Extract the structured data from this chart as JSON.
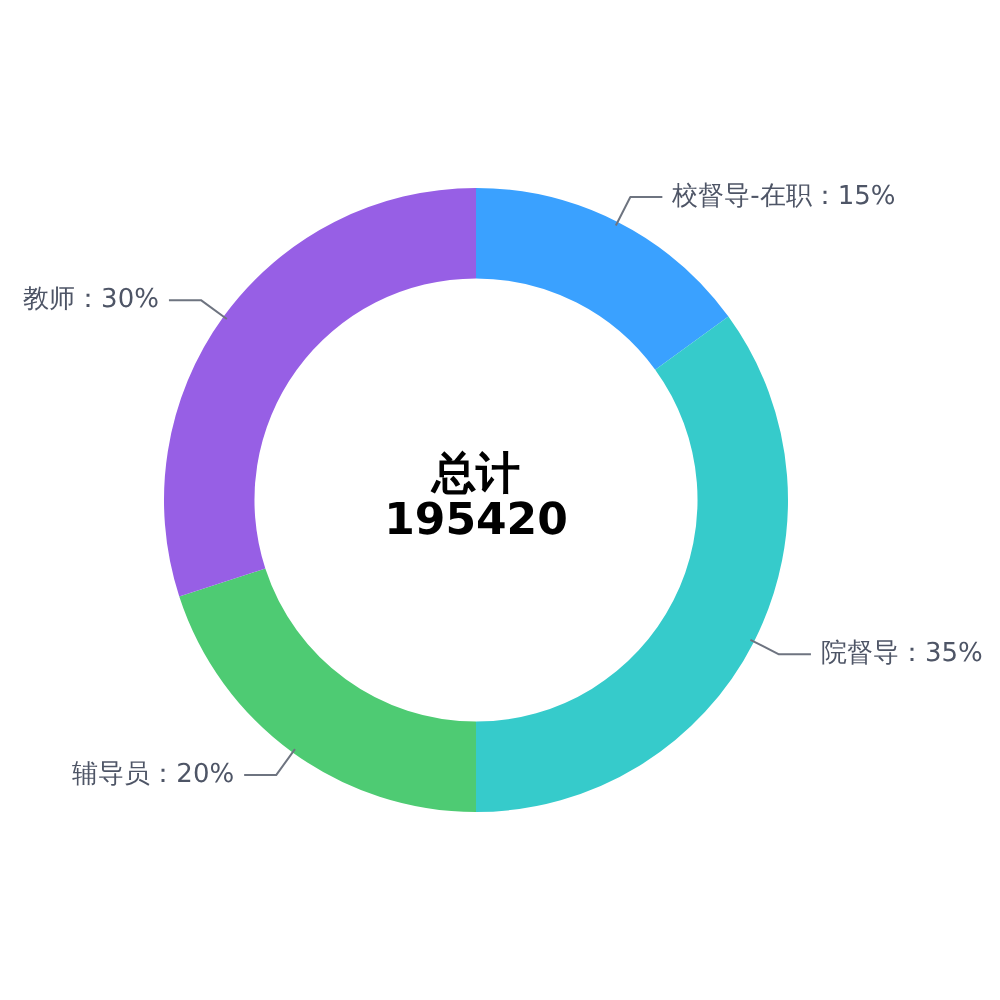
{
  "chart_data": {
    "type": "donut",
    "categories": [
      "校督导-在职",
      "院督导",
      "辅导员",
      "教师"
    ],
    "values": [
      15,
      35,
      20,
      30
    ],
    "colors": [
      "#3aa1ff",
      "#36cbcb",
      "#4ecb73",
      "#975fe5"
    ],
    "value_labels": [
      "15%",
      "35%",
      "20%",
      "30%"
    ],
    "annotations": [
      "总计",
      "195420"
    ]
  }
}
